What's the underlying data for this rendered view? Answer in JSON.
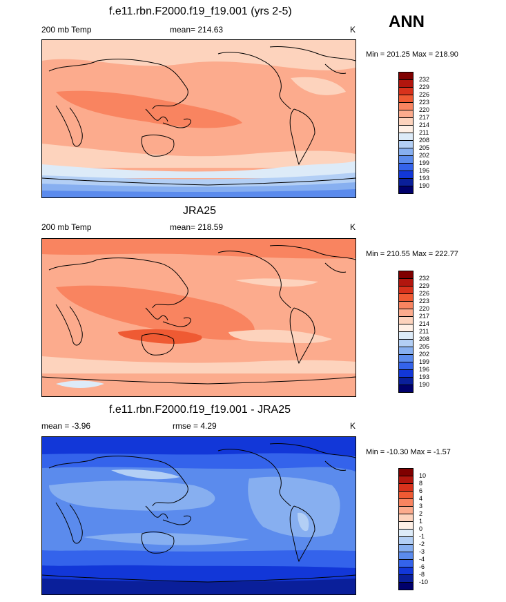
{
  "header": {
    "season_label": "ANN"
  },
  "panels": [
    {
      "title": "f.e11.rbn.F2000.f19_f19.001 (yrs 2-5)",
      "left_label": "200 mb Temp",
      "center_label": "mean= 214.63",
      "unit": "K",
      "minmax": "Min = 201.25 Max = 218.90",
      "colorbar_labels": [
        "232",
        "229",
        "226",
        "223",
        "220",
        "217",
        "214",
        "211",
        "208",
        "205",
        "202",
        "199",
        "196",
        "193",
        "190"
      ]
    },
    {
      "title": "JRA25",
      "left_label": "200 mb Temp",
      "center_label": "mean= 218.59",
      "unit": "K",
      "minmax": "Min = 210.55 Max = 222.77",
      "colorbar_labels": [
        "232",
        "229",
        "226",
        "223",
        "220",
        "217",
        "214",
        "211",
        "208",
        "205",
        "202",
        "199",
        "196",
        "193",
        "190"
      ]
    },
    {
      "title": "f.e11.rbn.F2000.f19_f19.001 - JRA25",
      "left_label": "mean =  -3.96",
      "center_label": "rmse =   4.29",
      "unit": "K",
      "minmax": "Min = -10.30 Max =  -1.57",
      "colorbar_labels": [
        "10",
        "8",
        "6",
        "4",
        "3",
        "2",
        "1",
        "0",
        "-1",
        "-2",
        "-3",
        "-4",
        "-6",
        "-8",
        "-10"
      ]
    }
  ],
  "colors": {
    "scale": [
      "#7f0000",
      "#b2160e",
      "#d8321c",
      "#ef5a33",
      "#f98460",
      "#fcab8d",
      "#fdd3bd",
      "#fff0e6",
      "#ddebf8",
      "#b3cff5",
      "#87aff0",
      "#5b8bed",
      "#3463eb",
      "#1237d8",
      "#0a1f9a",
      "#00006b"
    ]
  }
}
